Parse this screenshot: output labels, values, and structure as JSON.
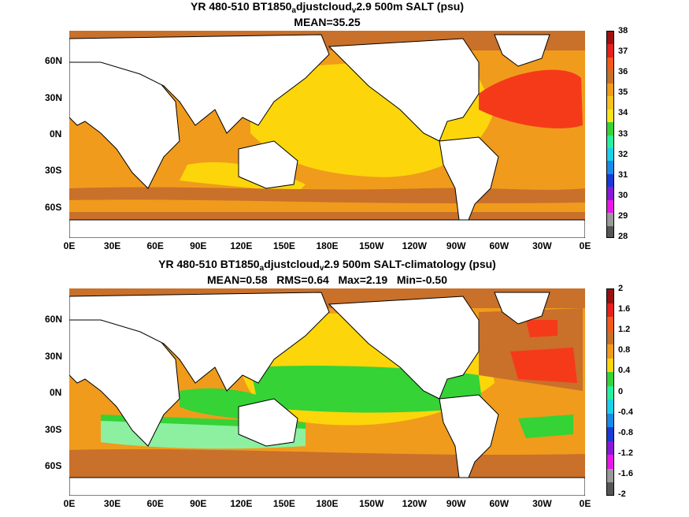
{
  "panels": [
    {
      "id": "top",
      "title_line1_pre": "YR 480-510 BT1850",
      "title_sub1": "a",
      "title_mid": "djustcloud",
      "title_sub2": "v",
      "title_post": "2.9 500m SALT (psu)",
      "title_line2": "MEAN=35.25",
      "colorbar_labels": [
        "38",
        "37",
        "36",
        "35",
        "34",
        "33",
        "32",
        "31",
        "30",
        "29",
        "28"
      ],
      "colorbar_colors": [
        "#a01010",
        "#e8201a",
        "#f25a1a",
        "#c87028",
        "#f09b1c",
        "#f7c21e",
        "#fde418",
        "#35d335",
        "#26f0a0",
        "#1ad0ea",
        "#1a8ae8",
        "#1a3ad8",
        "#8a18d8",
        "#e818e8",
        "#999999",
        "#555555"
      ],
      "colors": {
        "ocean_base": "#f7b01e",
        "deep": "#c9702a",
        "orange": "#f09b1c",
        "gold": "#fcd60a",
        "red": "#f53a1a",
        "darkred": "#9a0f0f"
      }
    },
    {
      "id": "bottom",
      "title_line1_pre": "YR 480-510 BT1850",
      "title_sub1": "a",
      "title_mid": "djustcloud",
      "title_sub2": "v",
      "title_post": "2.9 500m SALT-climatology (psu)",
      "title_line2": "MEAN=0.58   RMS=0.64   Max=2.19   Min=-0.50",
      "colorbar_labels": [
        "2",
        "1.6",
        "1.2",
        "0.8",
        "0.4",
        "0",
        "-0.4",
        "-0.8",
        "-1.2",
        "-1.6",
        "-2"
      ],
      "colorbar_colors": [
        "#9a0f0f",
        "#e8201a",
        "#f25a1a",
        "#c87028",
        "#f09b1c",
        "#fcd60a",
        "#35d335",
        "#26f0a0",
        "#1ad0ea",
        "#1a8ae8",
        "#1a3ad8",
        "#8a18d8",
        "#e818e8",
        "#999999",
        "#555555"
      ],
      "colors": {
        "ocean_base": "#f7b01e",
        "deep": "#c9702a",
        "orange": "#f09b1c",
        "gold": "#fcd60a",
        "green": "#35d335",
        "mint": "#8cf0a0",
        "red": "#f53a1a",
        "darkred": "#9a0f0f"
      }
    }
  ],
  "x_ticks": [
    "0E",
    "30E",
    "60E",
    "90E",
    "120E",
    "150E",
    "180E",
    "150W",
    "120W",
    "90W",
    "60W",
    "30W",
    "0E"
  ],
  "y_ticks": [
    "60N",
    "30N",
    "0N",
    "30S",
    "60S"
  ]
}
